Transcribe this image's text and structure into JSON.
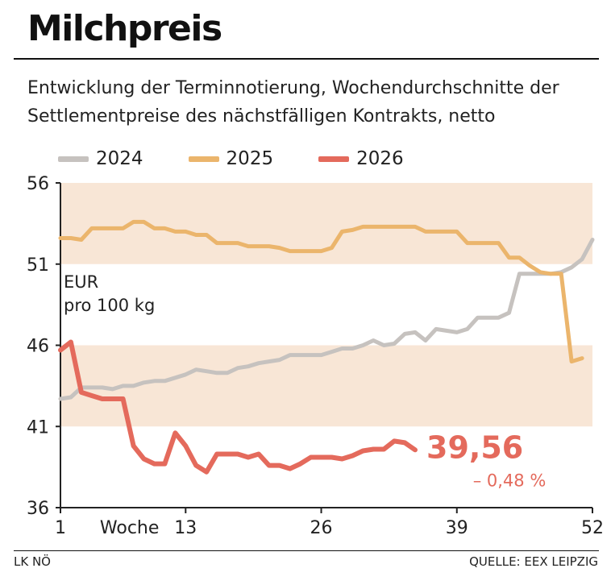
{
  "header": {
    "title": "Milchpreis",
    "subtitle": "Entwicklung der Terminnotierung, Wochendurchschnitte der Settlementpreise des nächstfälligen Kontrakts, netto"
  },
  "footer": {
    "left": "LK NÖ",
    "right": "QUELLE: EEX LEIPZIG"
  },
  "chart_data": {
    "type": "line",
    "ylim": [
      36,
      56
    ],
    "xlim": [
      1,
      52
    ],
    "yticks": [
      "56",
      "51",
      "46",
      "41",
      "36"
    ],
    "xticks": [
      {
        "label": "1",
        "x": 1
      },
      {
        "label": "13",
        "x": 13
      },
      {
        "label": "26",
        "x": 26
      },
      {
        "label": "39",
        "x": 39
      },
      {
        "label": "52",
        "x": 52
      }
    ],
    "xlabel": "Woche",
    "unit_label": [
      "EUR",
      "pro 100 kg"
    ],
    "bands": [
      [
        51,
        56
      ],
      [
        41,
        46
      ]
    ],
    "colors": {
      "band": "#f8e6d6",
      "axis": "#222222"
    },
    "series": [
      {
        "name": "2024",
        "color": "#c6c2bf",
        "x": [
          1,
          2,
          3,
          4,
          5,
          6,
          7,
          8,
          9,
          10,
          11,
          12,
          13,
          14,
          15,
          16,
          17,
          18,
          19,
          20,
          21,
          22,
          23,
          24,
          25,
          26,
          27,
          28,
          29,
          30,
          31,
          32,
          33,
          34,
          35,
          36,
          37,
          38,
          39,
          40,
          41,
          42,
          43,
          44,
          45,
          46,
          47,
          48,
          49,
          50,
          51,
          52
        ],
        "values": [
          42.7,
          42.8,
          43.4,
          43.4,
          43.4,
          43.3,
          43.5,
          43.5,
          43.7,
          43.8,
          43.8,
          44.0,
          44.2,
          44.5,
          44.4,
          44.3,
          44.3,
          44.6,
          44.7,
          44.9,
          45.0,
          45.1,
          45.4,
          45.4,
          45.4,
          45.4,
          45.6,
          45.8,
          45.8,
          46.0,
          46.3,
          46.0,
          46.1,
          46.7,
          46.8,
          46.3,
          47.0,
          46.9,
          46.8,
          47.0,
          47.7,
          47.7,
          47.7,
          48.0,
          50.4,
          50.4,
          50.4,
          50.4,
          50.5,
          50.8,
          51.3,
          52.5
        ],
        "end_label": "",
        "change_label": ""
      },
      {
        "name": "2025",
        "color": "#ebb56c",
        "x": [
          1,
          2,
          3,
          4,
          5,
          6,
          7,
          8,
          9,
          10,
          11,
          12,
          13,
          14,
          15,
          16,
          17,
          18,
          19,
          20,
          21,
          22,
          23,
          24,
          25,
          26,
          27,
          28,
          29,
          30,
          31,
          32,
          33,
          34,
          35,
          36,
          37,
          38,
          39,
          40,
          41,
          42,
          43,
          44,
          45,
          46,
          47,
          48,
          49,
          50,
          51,
          52
        ],
        "values": [
          52.6,
          52.6,
          52.5,
          53.2,
          53.2,
          53.2,
          53.2,
          53.6,
          53.6,
          53.2,
          53.2,
          53.0,
          53.0,
          52.8,
          52.8,
          52.3,
          52.3,
          52.3,
          52.1,
          52.1,
          52.1,
          52.0,
          51.8,
          51.8,
          51.8,
          51.8,
          52.0,
          53.0,
          53.1,
          53.3,
          53.3,
          53.3,
          53.3,
          53.3,
          53.3,
          53.0,
          53.0,
          53.0,
          53.0,
          52.3,
          52.3,
          52.3,
          52.3,
          51.4,
          51.4,
          50.9,
          50.5,
          50.4,
          50.4,
          45.0,
          45.2,
          null
        ],
        "end_label": "",
        "change_label": ""
      },
      {
        "name": "2026",
        "color": "#e46a5c",
        "x": [
          1,
          2,
          3,
          4,
          5,
          6,
          7,
          8,
          9,
          10,
          11,
          12,
          13,
          14,
          15,
          16,
          17,
          18,
          19,
          20,
          21,
          22,
          23,
          24,
          25,
          26,
          27,
          28,
          29,
          30,
          31,
          32,
          33,
          34,
          35
        ],
        "values": [
          45.7,
          46.2,
          43.1,
          42.9,
          42.7,
          42.7,
          42.7,
          39.8,
          39.0,
          38.7,
          38.7,
          40.6,
          39.8,
          38.6,
          38.2,
          39.3,
          39.3,
          39.3,
          39.1,
          39.3,
          38.6,
          38.6,
          38.4,
          38.7,
          39.1,
          39.1,
          39.1,
          39.0,
          39.2,
          39.5,
          39.6,
          39.6,
          40.1,
          40.0,
          39.56
        ],
        "end_label": "39,56",
        "change_label": "– 0,48 %"
      }
    ]
  }
}
